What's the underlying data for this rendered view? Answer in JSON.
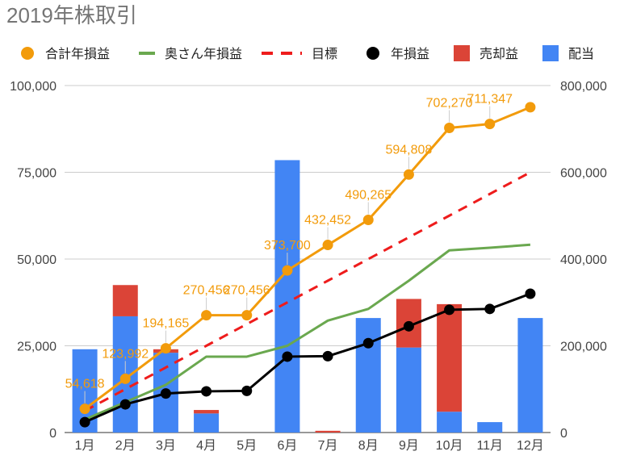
{
  "chart_data": {
    "type": "bar+line",
    "title": "2019年株取引",
    "categories": [
      "1月",
      "2月",
      "3月",
      "4月",
      "5月",
      "6月",
      "7月",
      "8月",
      "9月",
      "10月",
      "11月",
      "12月"
    ],
    "left_axis": {
      "ylim": [
        0,
        100000
      ],
      "ticks": [
        "0",
        "25,000",
        "50,000",
        "75,000",
        "100,000"
      ]
    },
    "right_axis": {
      "ylim": [
        0,
        800000
      ],
      "ticks": [
        "0",
        "200,000",
        "400,000",
        "600,000",
        "800,000"
      ]
    },
    "series": [
      {
        "name": "合計年損益",
        "type": "line",
        "axis": "right",
        "color": "#f29b0b",
        "marker": "circle",
        "values": [
          54618,
          123992,
          194165,
          270456,
          270456,
          373700,
          432452,
          490265,
          594808,
          702270,
          711347,
          750000
        ]
      },
      {
        "name": "奥さん年損益",
        "type": "line",
        "axis": "right",
        "color": "#6aa84f",
        "values": [
          30000,
          70000,
          110000,
          175000,
          175000,
          200000,
          258000,
          285000,
          350000,
          420000,
          426000,
          433000
        ]
      },
      {
        "name": "目標",
        "type": "line",
        "axis": "right",
        "color": "#ee1c1c",
        "dashed": true,
        "values": [
          50000,
          100000,
          150000,
          200000,
          250000,
          300000,
          350000,
          400000,
          450000,
          500000,
          550000,
          600000
        ]
      },
      {
        "name": "年損益",
        "type": "line",
        "axis": "right",
        "color": "#000000",
        "marker": "circle",
        "values": [
          24000,
          65000,
          90000,
          95000,
          96000,
          175000,
          176000,
          206000,
          245000,
          283000,
          285000,
          320000
        ]
      },
      {
        "name": "売却益",
        "type": "bar",
        "axis": "left",
        "stack": "s",
        "color": "#db4437",
        "values": [
          0,
          9000,
          1000,
          1000,
          0,
          0,
          500,
          0,
          14000,
          31000,
          0,
          0
        ]
      },
      {
        "name": "配当",
        "type": "bar",
        "axis": "left",
        "stack": "s",
        "color": "#4285f4",
        "values": [
          24000,
          33500,
          23000,
          5500,
          0,
          78500,
          0,
          33000,
          24500,
          6000,
          3000,
          33000
        ]
      }
    ],
    "data_labels": {
      "series": "合計年損益",
      "labels": [
        "54,618",
        "123,992",
        "194,165",
        "270,456",
        "270,456",
        "373,700",
        "432,452",
        "490,265",
        "594,808",
        "702,270",
        "711,347",
        ""
      ]
    }
  }
}
